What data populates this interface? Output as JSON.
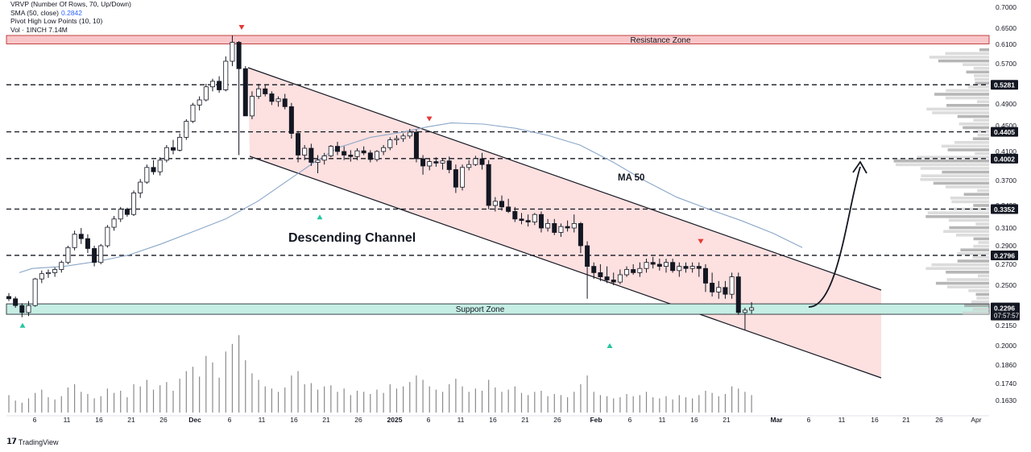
{
  "legend": {
    "vrvp": "VRVP (Number Of Rows, 70, Up/Down)",
    "sma": "SMA (50, close)",
    "sma_value": "0.2842",
    "pivot": "Pivot High Low Points (10, 10)",
    "vol": "Vol · 1INCH",
    "vol_value": "7.14M"
  },
  "brand": "TradingView",
  "colors": {
    "up": "#ffffff",
    "down": "#131722",
    "resistance_fill": "#f8c6c8",
    "support_fill": "#c6eee4",
    "channel_fill": "#fde0e0",
    "ma_line": "#8aa6c8",
    "pivot_high": "#e53935",
    "pivot_low": "#26c6a0"
  },
  "chart_data": {
    "type": "candlestick",
    "title": "",
    "x_axis_labels": [
      "6",
      "11",
      "16",
      "21",
      "26",
      "Dec",
      "6",
      "11",
      "16",
      "21",
      "26",
      "2025",
      "6",
      "11",
      "16",
      "21",
      "26",
      "Feb",
      "6",
      "11",
      "16",
      "21",
      "Mar",
      "6",
      "11",
      "16",
      "21",
      "26",
      "Apr"
    ],
    "y_axis_ticks": [
      "0.7000",
      "0.6500",
      "0.6100",
      "0.5700",
      "0.5300",
      "0.4900",
      "0.4500",
      "0.4100",
      "0.3700",
      "0.3400",
      "0.3100",
      "0.2900",
      "0.2700",
      "0.2500",
      "0.2300",
      "0.2150",
      "0.2000",
      "0.1860",
      "0.1740",
      "0.1630"
    ],
    "ohlc": [
      [
        0.24,
        0.243,
        0.236,
        0.238
      ],
      [
        0.238,
        0.24,
        0.23,
        0.232
      ],
      [
        0.232,
        0.234,
        0.222,
        0.226
      ],
      [
        0.226,
        0.236,
        0.223,
        0.232
      ],
      [
        0.232,
        0.257,
        0.231,
        0.256
      ],
      [
        0.256,
        0.264,
        0.252,
        0.261
      ],
      [
        0.261,
        0.265,
        0.257,
        0.262
      ],
      [
        0.262,
        0.267,
        0.258,
        0.265
      ],
      [
        0.265,
        0.274,
        0.262,
        0.272
      ],
      [
        0.272,
        0.29,
        0.27,
        0.288
      ],
      [
        0.288,
        0.307,
        0.285,
        0.303
      ],
      [
        0.303,
        0.31,
        0.292,
        0.298
      ],
      [
        0.298,
        0.303,
        0.282,
        0.287
      ],
      [
        0.287,
        0.29,
        0.268,
        0.272
      ],
      [
        0.272,
        0.292,
        0.27,
        0.29
      ],
      [
        0.29,
        0.314,
        0.288,
        0.311
      ],
      [
        0.311,
        0.326,
        0.307,
        0.322
      ],
      [
        0.322,
        0.338,
        0.318,
        0.335
      ],
      [
        0.335,
        0.337,
        0.325,
        0.328
      ],
      [
        0.328,
        0.358,
        0.326,
        0.355
      ],
      [
        0.355,
        0.372,
        0.349,
        0.368
      ],
      [
        0.368,
        0.392,
        0.366,
        0.388
      ],
      [
        0.388,
        0.398,
        0.378,
        0.382
      ],
      [
        0.382,
        0.402,
        0.377,
        0.398
      ],
      [
        0.398,
        0.42,
        0.395,
        0.416
      ],
      [
        0.416,
        0.428,
        0.406,
        0.412
      ],
      [
        0.412,
        0.438,
        0.41,
        0.432
      ],
      [
        0.432,
        0.462,
        0.428,
        0.458
      ],
      [
        0.458,
        0.492,
        0.455,
        0.488
      ],
      [
        0.488,
        0.505,
        0.478,
        0.498
      ],
      [
        0.498,
        0.53,
        0.495,
        0.524
      ],
      [
        0.524,
        0.54,
        0.515,
        0.535
      ],
      [
        0.535,
        0.545,
        0.512,
        0.518
      ],
      [
        0.518,
        0.585,
        0.515,
        0.575
      ],
      [
        0.575,
        0.632,
        0.565,
        0.615
      ],
      [
        0.615,
        0.618,
        0.405,
        0.56
      ],
      [
        0.56,
        0.565,
        0.468,
        0.468
      ],
      [
        0.468,
        0.515,
        0.462,
        0.505
      ],
      [
        0.505,
        0.53,
        0.5,
        0.52
      ],
      [
        0.52,
        0.528,
        0.505,
        0.51
      ],
      [
        0.51,
        0.515,
        0.488,
        0.495
      ],
      [
        0.495,
        0.505,
        0.485,
        0.5
      ],
      [
        0.5,
        0.51,
        0.48,
        0.485
      ],
      [
        0.485,
        0.492,
        0.43,
        0.438
      ],
      [
        0.438,
        0.442,
        0.395,
        0.405
      ],
      [
        0.405,
        0.42,
        0.398,
        0.415
      ],
      [
        0.415,
        0.422,
        0.39,
        0.395
      ],
      [
        0.395,
        0.405,
        0.38,
        0.398
      ],
      [
        0.398,
        0.408,
        0.392,
        0.404
      ],
      [
        0.404,
        0.42,
        0.402,
        0.418
      ],
      [
        0.418,
        0.425,
        0.405,
        0.41
      ],
      [
        0.41,
        0.418,
        0.398,
        0.405
      ],
      [
        0.405,
        0.412,
        0.396,
        0.403
      ],
      [
        0.403,
        0.415,
        0.398,
        0.411
      ],
      [
        0.411,
        0.418,
        0.405,
        0.408
      ],
      [
        0.408,
        0.412,
        0.395,
        0.399
      ],
      [
        0.399,
        0.412,
        0.396,
        0.41
      ],
      [
        0.41,
        0.42,
        0.405,
        0.416
      ],
      [
        0.416,
        0.432,
        0.412,
        0.428
      ],
      [
        0.428,
        0.435,
        0.42,
        0.43
      ],
      [
        0.43,
        0.438,
        0.425,
        0.434
      ],
      [
        0.434,
        0.445,
        0.43,
        0.44
      ],
      [
        0.44,
        0.444,
        0.395,
        0.4
      ],
      [
        0.4,
        0.405,
        0.378,
        0.39
      ],
      [
        0.39,
        0.4,
        0.384,
        0.396
      ],
      [
        0.396,
        0.402,
        0.389,
        0.394
      ],
      [
        0.394,
        0.4,
        0.385,
        0.397
      ],
      [
        0.397,
        0.403,
        0.38,
        0.385
      ],
      [
        0.385,
        0.392,
        0.355,
        0.362
      ],
      [
        0.362,
        0.392,
        0.358,
        0.388
      ],
      [
        0.388,
        0.398,
        0.384,
        0.392
      ],
      [
        0.392,
        0.404,
        0.39,
        0.4
      ],
      [
        0.4,
        0.408,
        0.385,
        0.392
      ],
      [
        0.392,
        0.398,
        0.335,
        0.34
      ],
      [
        0.34,
        0.35,
        0.332,
        0.345
      ],
      [
        0.345,
        0.352,
        0.333,
        0.338
      ],
      [
        0.338,
        0.348,
        0.33,
        0.332
      ],
      [
        0.332,
        0.338,
        0.318,
        0.322
      ],
      [
        0.322,
        0.33,
        0.315,
        0.32
      ],
      [
        0.32,
        0.328,
        0.312,
        0.318
      ],
      [
        0.318,
        0.33,
        0.314,
        0.328
      ],
      [
        0.328,
        0.332,
        0.305,
        0.31
      ],
      [
        0.31,
        0.322,
        0.306,
        0.316
      ],
      [
        0.316,
        0.322,
        0.302,
        0.305
      ],
      [
        0.305,
        0.316,
        0.3,
        0.312
      ],
      [
        0.312,
        0.32,
        0.306,
        0.31
      ],
      [
        0.31,
        0.328,
        0.305,
        0.316
      ],
      [
        0.316,
        0.318,
        0.282,
        0.29
      ],
      [
        0.29,
        0.295,
        0.238,
        0.268
      ],
      [
        0.268,
        0.272,
        0.256,
        0.262
      ],
      [
        0.262,
        0.27,
        0.254,
        0.258
      ],
      [
        0.258,
        0.268,
        0.252,
        0.255
      ],
      [
        0.255,
        0.262,
        0.25,
        0.253
      ],
      [
        0.253,
        0.265,
        0.251,
        0.26
      ],
      [
        0.26,
        0.268,
        0.258,
        0.265
      ],
      [
        0.265,
        0.27,
        0.26,
        0.262
      ],
      [
        0.262,
        0.272,
        0.258,
        0.266
      ],
      [
        0.266,
        0.276,
        0.262,
        0.272
      ],
      [
        0.272,
        0.278,
        0.266,
        0.27
      ],
      [
        0.27,
        0.276,
        0.264,
        0.268
      ],
      [
        0.268,
        0.276,
        0.262,
        0.272
      ],
      [
        0.272,
        0.276,
        0.262,
        0.264
      ],
      [
        0.264,
        0.272,
        0.258,
        0.268
      ],
      [
        0.268,
        0.272,
        0.262,
        0.266
      ],
      [
        0.266,
        0.272,
        0.262,
        0.268
      ],
      [
        0.268,
        0.272,
        0.258,
        0.266
      ],
      [
        0.266,
        0.27,
        0.244,
        0.252
      ],
      [
        0.252,
        0.262,
        0.24,
        0.244
      ],
      [
        0.244,
        0.254,
        0.238,
        0.248
      ],
      [
        0.248,
        0.254,
        0.238,
        0.242
      ],
      [
        0.242,
        0.262,
        0.238,
        0.258
      ],
      [
        0.258,
        0.262,
        0.224,
        0.226
      ],
      [
        0.226,
        0.23,
        0.212,
        0.228
      ],
      [
        0.228,
        0.235,
        0.225,
        0.23
      ]
    ],
    "volume": [
      1.6,
      1.1,
      0.9,
      1.3,
      1.8,
      2.1,
      1.4,
      1.2,
      1.5,
      2.3,
      2.6,
      1.9,
      1.7,
      1.3,
      1.5,
      2.2,
      1.8,
      2.0,
      1.4,
      2.6,
      2.4,
      3.0,
      2.1,
      2.5,
      2.8,
      2.0,
      3.1,
      3.8,
      4.2,
      3.3,
      5.2,
      4.6,
      3.2,
      5.6,
      6.3,
      7.1,
      4.8,
      3.6,
      3.0,
      2.4,
      2.2,
      1.9,
      2.3,
      3.4,
      3.8,
      2.6,
      2.7,
      2.1,
      2.4,
      2.5,
      1.9,
      2.2,
      1.6,
      2.0,
      1.9,
      1.7,
      2.1,
      1.8,
      2.6,
      2.2,
      2.4,
      2.8,
      3.4,
      3.0,
      2.4,
      2.1,
      1.9,
      2.6,
      3.1,
      2.4,
      1.9,
      2.2,
      2.0,
      3.0,
      2.3,
      1.9,
      2.1,
      2.4,
      1.8,
      1.6,
      1.9,
      2.0,
      1.5,
      1.7,
      1.6,
      1.4,
      1.9,
      2.6,
      3.4,
      1.9,
      1.6,
      1.5,
      1.3,
      1.4,
      1.7,
      1.5,
      1.6,
      1.9,
      1.4,
      1.3,
      1.5,
      1.2,
      1.6,
      1.4,
      1.3,
      1.6,
      2.0,
      1.8,
      1.5,
      1.7,
      2.4,
      2.2,
      1.9,
      1.6
    ],
    "sma_50": [
      [
        24,
        0.262
      ],
      [
        40,
        0.266
      ],
      [
        80,
        0.268
      ],
      [
        120,
        0.273
      ],
      [
        160,
        0.28
      ],
      [
        200,
        0.292
      ],
      [
        240,
        0.306
      ],
      [
        280,
        0.322
      ],
      [
        320,
        0.345
      ],
      [
        360,
        0.372
      ],
      [
        390,
        0.395
      ],
      [
        420,
        0.416
      ],
      [
        460,
        0.432
      ],
      [
        500,
        0.44
      ],
      [
        530,
        0.448
      ],
      [
        560,
        0.455
      ],
      [
        600,
        0.453
      ],
      [
        640,
        0.446
      ],
      [
        680,
        0.435
      ],
      [
        720,
        0.42
      ],
      [
        760,
        0.396
      ],
      [
        800,
        0.37
      ],
      [
        840,
        0.35
      ],
      [
        880,
        0.335
      ],
      [
        920,
        0.32
      ],
      [
        960,
        0.304
      ],
      [
        996,
        0.288
      ]
    ],
    "resistance_zone": {
      "label": "Resistance Zone",
      "low": 0.611,
      "high": 0.632
    },
    "support_zone": {
      "label": "Support Zone",
      "low": 0.2245,
      "high": 0.2335
    },
    "horizontal_levels": [
      {
        "value": 0.5281,
        "label": "0.5281"
      },
      {
        "value": 0.4405,
        "label": "0.4405"
      },
      {
        "value": 0.4002,
        "label": "0.4002"
      },
      {
        "value": 0.3352,
        "label": "0.3352"
      },
      {
        "value": 0.2796,
        "label": "0.2796"
      }
    ],
    "current_price": {
      "label": "0.2296",
      "countdown": "07:57:57",
      "value": 0.2296
    },
    "channel_label": "Descending Channel",
    "ma_label": "MA 50",
    "pivot_highs": [
      [
        300,
        0.632
      ],
      [
        533,
        0.448
      ],
      [
        870,
        0.286
      ]
    ],
    "pivot_lows": [
      [
        28,
        0.222
      ],
      [
        397,
        0.3355
      ],
      [
        757,
        0.206
      ]
    ]
  }
}
